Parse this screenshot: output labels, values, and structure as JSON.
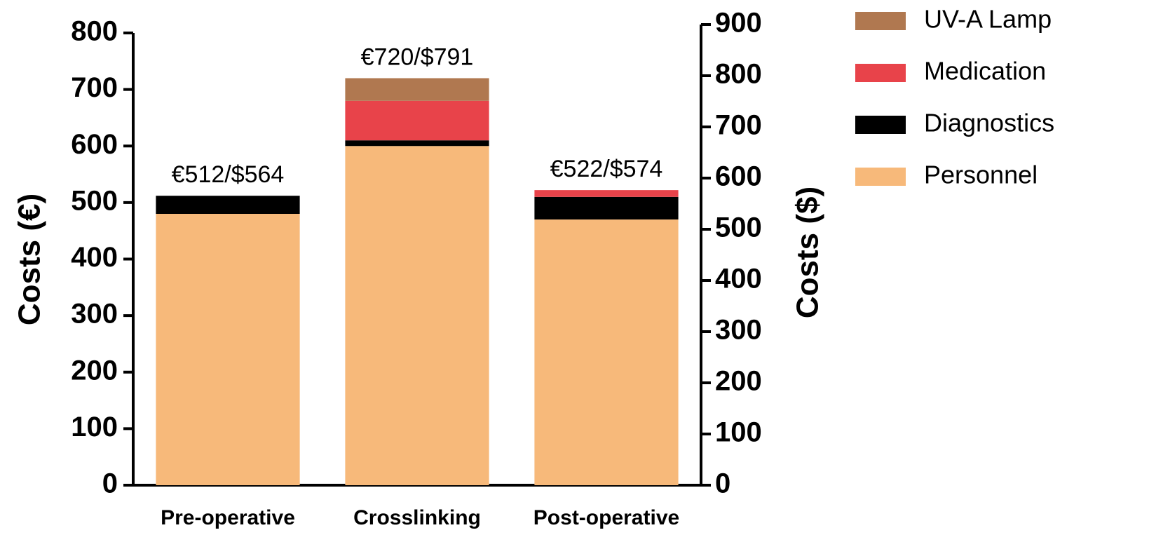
{
  "chart_data": {
    "type": "stacked_bar",
    "categories": [
      "Pre-operative",
      "Crosslinking",
      "Post-operative"
    ],
    "series": [
      {
        "name": "Personnel",
        "color": "#f7b97a",
        "values": [
          480,
          600,
          470
        ]
      },
      {
        "name": "Diagnostics",
        "color": "#000000",
        "values": [
          32,
          10,
          40
        ]
      },
      {
        "name": "Medication",
        "color": "#e8434a",
        "values": [
          0,
          70,
          12
        ]
      },
      {
        "name": "UV-A Lamp",
        "color": "#b07850",
        "values": [
          0,
          40,
          0
        ]
      }
    ],
    "annotations": [
      "€512/$564",
      "€720/$791",
      "€522/$574"
    ],
    "y_label": "Costs (€)",
    "y2_label": "Costs ($)",
    "ylim": [
      0,
      800
    ],
    "yticks": [
      0,
      100,
      200,
      300,
      400,
      500,
      600,
      700,
      800
    ],
    "y2lim": [
      0,
      900
    ],
    "y2ticks": [
      0,
      100,
      200,
      300,
      400,
      500,
      600,
      700,
      800,
      900
    ],
    "grid": false,
    "legend": "right"
  }
}
